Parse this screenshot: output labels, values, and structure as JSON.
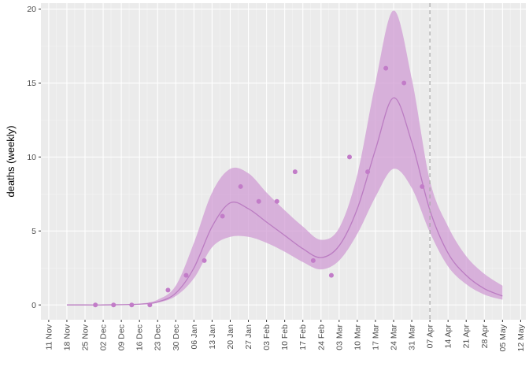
{
  "chart_data": {
    "type": "line",
    "title": "",
    "xlabel": "",
    "ylabel": "deaths (weekly)",
    "ylim": [
      -1,
      20.4
    ],
    "yticks": [
      0,
      5,
      10,
      15,
      20
    ],
    "grid": true,
    "legend": "none",
    "colors": {
      "panel": "#ebebeb",
      "grid_major": "#ffffff",
      "grid_minor": "#f4f4f4",
      "series": "#c27cc8",
      "ribbon": "#cf99d3",
      "vline": "#a8a8a8"
    },
    "x_ticks": [
      "11 Nov",
      "18 Nov",
      "25 Nov",
      "02 Dec",
      "09 Dec",
      "16 Dec",
      "23 Dec",
      "30 Dec",
      "06 Jan",
      "13 Jan",
      "20 Jan",
      "27 Jan",
      "03 Feb",
      "10 Feb",
      "17 Feb",
      "24 Feb",
      "03 Mar",
      "10 Mar",
      "17 Mar",
      "24 Mar",
      "31 Mar",
      "07 Apr",
      "14 Apr",
      "21 Apr",
      "28 Apr",
      "05 May",
      "12 May"
    ],
    "x_range": [
      "2019-11-08",
      "2020-05-13"
    ],
    "vline_date": "2020-04-06",
    "observed": [
      {
        "x": "2019-11-29",
        "y": 0
      },
      {
        "x": "2019-12-06",
        "y": 0
      },
      {
        "x": "2019-12-13",
        "y": 0
      },
      {
        "x": "2019-12-20",
        "y": 0
      },
      {
        "x": "2019-12-27",
        "y": 1
      },
      {
        "x": "2020-01-03",
        "y": 2
      },
      {
        "x": "2020-01-10",
        "y": 3
      },
      {
        "x": "2020-01-17",
        "y": 6
      },
      {
        "x": "2020-01-24",
        "y": 8
      },
      {
        "x": "2020-01-31",
        "y": 7
      },
      {
        "x": "2020-02-07",
        "y": 7
      },
      {
        "x": "2020-02-14",
        "y": 9
      },
      {
        "x": "2020-02-21",
        "y": 3
      },
      {
        "x": "2020-02-28",
        "y": 2
      },
      {
        "x": "2020-03-06",
        "y": 10
      },
      {
        "x": "2020-03-13",
        "y": 9
      },
      {
        "x": "2020-03-20",
        "y": 16
      },
      {
        "x": "2020-03-27",
        "y": 15
      },
      {
        "x": "2020-04-03",
        "y": 8
      }
    ],
    "fit": [
      {
        "x": "2019-11-18",
        "y": 0.0,
        "lo": 0.0,
        "hi": 0.0
      },
      {
        "x": "2019-11-25",
        "y": 0.0,
        "lo": 0.0,
        "hi": 0.0
      },
      {
        "x": "2019-12-02",
        "y": 0.0,
        "lo": 0.0,
        "hi": 0.0
      },
      {
        "x": "2019-12-09",
        "y": 0.02,
        "lo": 0.01,
        "hi": 0.03
      },
      {
        "x": "2019-12-16",
        "y": 0.05,
        "lo": 0.03,
        "hi": 0.08
      },
      {
        "x": "2019-12-23",
        "y": 0.2,
        "lo": 0.15,
        "hi": 0.35
      },
      {
        "x": "2019-12-30",
        "y": 0.8,
        "lo": 0.6,
        "hi": 1.3
      },
      {
        "x": "2020-01-06",
        "y": 2.5,
        "lo": 1.8,
        "hi": 4.2
      },
      {
        "x": "2020-01-13",
        "y": 5.3,
        "lo": 3.9,
        "hi": 7.6
      },
      {
        "x": "2020-01-20",
        "y": 6.9,
        "lo": 4.6,
        "hi": 9.2
      },
      {
        "x": "2020-01-27",
        "y": 6.5,
        "lo": 4.6,
        "hi": 8.9
      },
      {
        "x": "2020-02-03",
        "y": 5.6,
        "lo": 4.2,
        "hi": 7.6
      },
      {
        "x": "2020-02-10",
        "y": 4.7,
        "lo": 3.6,
        "hi": 6.4
      },
      {
        "x": "2020-02-17",
        "y": 3.8,
        "lo": 2.9,
        "hi": 5.3
      },
      {
        "x": "2020-02-24",
        "y": 3.2,
        "lo": 2.4,
        "hi": 4.4
      },
      {
        "x": "2020-03-02",
        "y": 4.0,
        "lo": 3.0,
        "hi": 5.2
      },
      {
        "x": "2020-03-09",
        "y": 6.5,
        "lo": 4.8,
        "hi": 8.8
      },
      {
        "x": "2020-03-16",
        "y": 10.5,
        "lo": 7.3,
        "hi": 15.0
      },
      {
        "x": "2020-03-23",
        "y": 14.0,
        "lo": 9.2,
        "hi": 19.9
      },
      {
        "x": "2020-03-30",
        "y": 11.0,
        "lo": 7.9,
        "hi": 15.3
      },
      {
        "x": "2020-04-06",
        "y": 6.4,
        "lo": 4.9,
        "hi": 8.4
      },
      {
        "x": "2020-04-13",
        "y": 3.5,
        "lo": 2.6,
        "hi": 5.3
      },
      {
        "x": "2020-04-20",
        "y": 2.0,
        "lo": 1.4,
        "hi": 3.3
      },
      {
        "x": "2020-04-27",
        "y": 1.1,
        "lo": 0.7,
        "hi": 2.1
      },
      {
        "x": "2020-05-04",
        "y": 0.6,
        "lo": 0.35,
        "hi": 1.3
      }
    ]
  }
}
